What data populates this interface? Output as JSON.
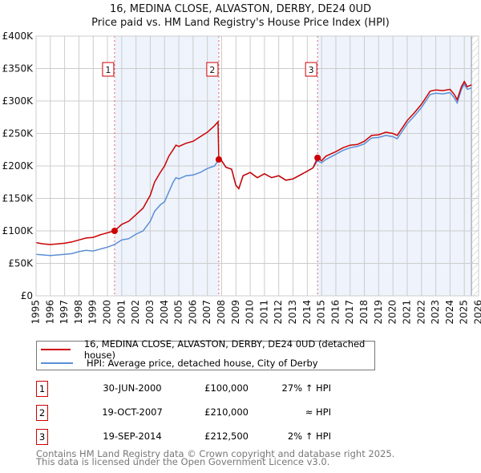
{
  "chart_data": {
    "type": "line",
    "title": "16, MEDINA CLOSE, ALVASTON, DERBY, DE24 0UD",
    "subtitle": "Price paid vs. HM Land Registry's House Price Index (HPI)",
    "xlim": [
      1995,
      2026
    ],
    "ylim": [
      0,
      400000
    ],
    "x_ticks": [
      "1995",
      "1996",
      "1997",
      "1998",
      "1999",
      "2000",
      "2001",
      "2002",
      "2003",
      "2004",
      "2005",
      "2006",
      "2007",
      "2008",
      "2009",
      "2010",
      "2011",
      "2012",
      "2013",
      "2014",
      "2015",
      "2016",
      "2017",
      "2018",
      "2019",
      "2020",
      "2021",
      "2022",
      "2023",
      "2024",
      "2025",
      "2026"
    ],
    "y_ticks": [
      {
        "v": 0,
        "label": "£0"
      },
      {
        "v": 50000,
        "label": "£50K"
      },
      {
        "v": 100000,
        "label": "£100K"
      },
      {
        "v": 150000,
        "label": "£150K"
      },
      {
        "v": 200000,
        "label": "£200K"
      },
      {
        "v": 250000,
        "label": "£250K"
      },
      {
        "v": 300000,
        "label": "£300K"
      },
      {
        "v": 350000,
        "label": "£350K"
      },
      {
        "v": 400000,
        "label": "£400K"
      }
    ],
    "grid": true,
    "series": [
      {
        "name": "16, MEDINA CLOSE, ALVASTON, DERBY, DE24 0UD (detached house)",
        "color": "#cc0000",
        "x": [
          1995,
          1995.5,
          1996,
          1996.5,
          1997,
          1997.5,
          1998,
          1998.5,
          1999,
          1999.5,
          2000,
          2000.5,
          2001,
          2001.5,
          2002,
          2002.5,
          2003,
          2003.3,
          2003.7,
          2004,
          2004.3,
          2004.6,
          2004.8,
          2005,
          2005.5,
          2006,
          2006.5,
          2007,
          2007.5,
          2007.75,
          2007.8,
          2008,
          2008.3,
          2008.7,
          2009,
          2009.2,
          2009.5,
          2010,
          2010.5,
          2011,
          2011.5,
          2012,
          2012.5,
          2013,
          2013.5,
          2014,
          2014.4,
          2014.72,
          2015,
          2015.3,
          2016,
          2016.5,
          2017,
          2017.5,
          2018,
          2018.5,
          2019,
          2019.5,
          2020,
          2020.3,
          2020.7,
          2021,
          2021.5,
          2022,
          2022.3,
          2022.6,
          2023,
          2023.5,
          2024,
          2024.3,
          2024.5,
          2024.8,
          2025,
          2025.2,
          2025.5
        ],
        "y": [
          82000,
          80000,
          79000,
          80000,
          81000,
          83000,
          86000,
          89000,
          90000,
          94000,
          97000,
          100000,
          110000,
          115000,
          125000,
          135000,
          155000,
          175000,
          190000,
          200000,
          215000,
          225000,
          232000,
          230000,
          235000,
          238000,
          245000,
          252000,
          262000,
          268000,
          210000,
          208000,
          198000,
          195000,
          170000,
          165000,
          185000,
          190000,
          182000,
          188000,
          182000,
          185000,
          178000,
          180000,
          186000,
          192000,
          197000,
          212500,
          208000,
          215000,
          222000,
          228000,
          232000,
          233000,
          238000,
          247000,
          248000,
          252000,
          250000,
          247000,
          260000,
          270000,
          282000,
          295000,
          305000,
          315000,
          317000,
          316000,
          318000,
          310000,
          302000,
          322000,
          330000,
          322000,
          325000
        ]
      },
      {
        "name": "HPI: Average price, detached house, City of Derby",
        "color": "#5b8fd6",
        "x": [
          1995,
          1995.5,
          1996,
          1996.5,
          1997,
          1997.5,
          1998,
          1998.5,
          1999,
          1999.5,
          2000,
          2000.5,
          2001,
          2001.5,
          2002,
          2002.5,
          2003,
          2003.3,
          2003.7,
          2004,
          2004.3,
          2004.6,
          2004.8,
          2005,
          2005.5,
          2006,
          2006.5,
          2007,
          2007.5,
          2007.8,
          2008,
          2008.3,
          2008.7,
          2009,
          2009.2,
          2009.5,
          2010,
          2010.5,
          2011,
          2011.5,
          2012,
          2012.5,
          2013,
          2013.5,
          2014,
          2014.4,
          2014.72,
          2015,
          2015.3,
          2016,
          2016.5,
          2017,
          2017.5,
          2018,
          2018.5,
          2019,
          2019.5,
          2020,
          2020.3,
          2020.7,
          2021,
          2021.5,
          2022,
          2022.3,
          2022.6,
          2023,
          2023.5,
          2024,
          2024.3,
          2024.5,
          2024.8,
          2025,
          2025.2,
          2025.5
        ],
        "y": [
          64000,
          63000,
          62000,
          63000,
          64000,
          65000,
          68000,
          70000,
          69000,
          72000,
          75000,
          79000,
          86000,
          88000,
          95000,
          100000,
          115000,
          130000,
          140000,
          145000,
          160000,
          175000,
          182000,
          180000,
          185000,
          186000,
          190000,
          196000,
          200000,
          210000,
          208000,
          198000,
          195000,
          170000,
          165000,
          185000,
          190000,
          182000,
          188000,
          182000,
          185000,
          178000,
          180000,
          186000,
          192000,
          197000,
          208000,
          205000,
          210000,
          218000,
          224000,
          228000,
          230000,
          234000,
          243000,
          244000,
          247000,
          245000,
          242000,
          255000,
          265000,
          277000,
          290000,
          300000,
          310000,
          312000,
          311000,
          313000,
          305000,
          297000,
          318000,
          326000,
          318000,
          320000
        ]
      }
    ],
    "sales": [
      {
        "id": "1",
        "x": 2000.5,
        "y": 100000,
        "date": "30-JUN-2000",
        "price": "£100,000",
        "hpi": "27% ↑ HPI"
      },
      {
        "id": "2",
        "x": 2007.8,
        "y": 210000,
        "date": "19-OCT-2007",
        "price": "£210,000",
        "hpi": "≈ HPI"
      },
      {
        "id": "3",
        "x": 2014.72,
        "y": 212500,
        "date": "19-SEP-2014",
        "price": "£212,500",
        "hpi": "2% ↑ HPI"
      }
    ],
    "shaded_ranges": [
      [
        2000.5,
        2007.8
      ],
      [
        2014.72,
        2025.5
      ]
    ],
    "forecast_start": 2025.5,
    "legend_position": "below"
  },
  "footer": {
    "line1": "Contains HM Land Registry data © Crown copyright and database right 2025.",
    "line2": "This data is licensed under the Open Government Licence v3.0."
  }
}
